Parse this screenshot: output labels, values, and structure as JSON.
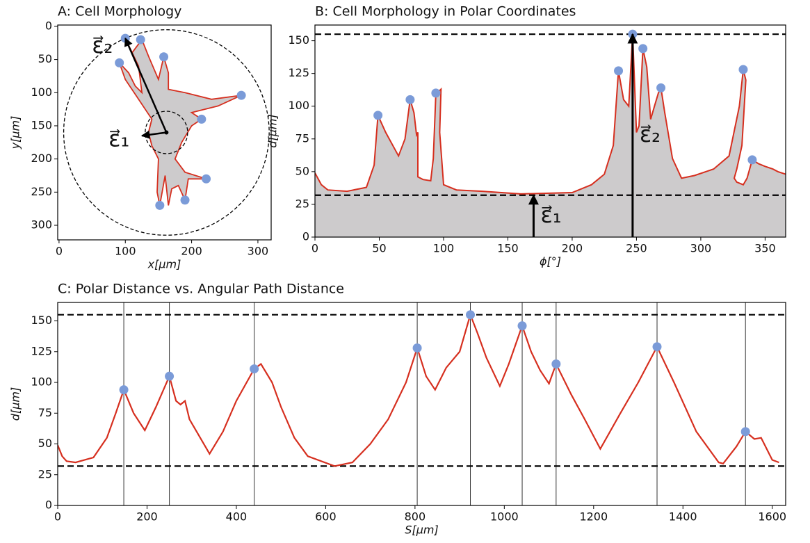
{
  "chart_data": [
    {
      "type": "outline",
      "title": "A: Cell Morphology",
      "xlabel": "x[μm]",
      "ylabel": "y[μm]",
      "xlim": [
        -2,
        320
      ],
      "ylim": [
        322,
        -2
      ],
      "xticks": [
        0,
        100,
        200,
        300
      ],
      "yticks": [
        0,
        50,
        100,
        150,
        200,
        250,
        300
      ],
      "outline": {
        "color": "#d62f1f",
        "fill": "#cdcbcc",
        "x": [
          100,
          110,
          125,
          135,
          150,
          158,
          165,
          165,
          190,
          230,
          275,
          240,
          200,
          215,
          200,
          185,
          175,
          190,
          222,
          195,
          190,
          180,
          170,
          165,
          160,
          152,
          148,
          150,
          140,
          135,
          140,
          120,
          100,
          91,
          105,
          115,
          125,
          120,
          100
        ],
        "y": [
          18,
          40,
          20,
          45,
          80,
          46,
          70,
          95,
          100,
          110,
          104,
          120,
          130,
          140,
          150,
          175,
          200,
          220,
          230,
          230,
          262,
          240,
          245,
          270,
          225,
          270,
          250,
          200,
          180,
          160,
          140,
          110,
          80,
          55,
          70,
          90,
          100,
          60,
          18
        ]
      },
      "peaks": {
        "color": "#7b9bd8",
        "x": [
          100,
          123,
          158,
          91,
          275,
          215,
          222,
          190,
          152
        ],
        "y": [
          18,
          20,
          46,
          55,
          104,
          140,
          230,
          262,
          270
        ]
      },
      "center": [
        162,
        160
      ],
      "circle_radii": [
        32,
        155
      ],
      "vectors": [
        {
          "label": "ε⃗₁",
          "x": [
            162,
            125
          ],
          "y": [
            160,
            165
          ]
        },
        {
          "label": "ε⃗₂",
          "x": [
            162,
            100
          ],
          "y": [
            160,
            18
          ]
        }
      ]
    },
    {
      "type": "area",
      "title": "B: Cell Morphology in Polar Coordinates",
      "xlabel": "ϕ[°]",
      "ylabel": "d[μm]",
      "xlim": [
        0,
        366
      ],
      "ylim": [
        0,
        162
      ],
      "xticks": [
        0,
        50,
        100,
        150,
        200,
        250,
        300,
        350
      ],
      "yticks": [
        0,
        25,
        50,
        75,
        100,
        125,
        150
      ],
      "series": [
        {
          "color": "#d62f1f",
          "fill": "#cdcbcc",
          "x": [
            0,
            5,
            10,
            25,
            40,
            46,
            49,
            55,
            65,
            70,
            74,
            77,
            79,
            80,
            80,
            84,
            90,
            92,
            94,
            97,
            98,
            97,
            100,
            110,
            130,
            160,
            200,
            215,
            225,
            232,
            236,
            240,
            244,
            247,
            250,
            252,
            255,
            258,
            261,
            264,
            267,
            269,
            272,
            278,
            285,
            295,
            310,
            322,
            330,
            333,
            335,
            332,
            328,
            326,
            328,
            333,
            336,
            338,
            340,
            345,
            350,
            356,
            360,
            366
          ],
          "values": [
            49,
            40,
            36,
            35,
            38,
            55,
            93,
            80,
            62,
            75,
            105,
            95,
            78,
            80,
            46,
            44,
            43,
            60,
            110,
            112,
            113,
            80,
            40,
            36,
            35,
            33,
            34,
            40,
            48,
            70,
            127,
            105,
            100,
            155,
            80,
            85,
            144,
            130,
            90,
            100,
            110,
            114,
            95,
            60,
            45,
            47,
            52,
            62,
            100,
            128,
            120,
            70,
            52,
            45,
            42,
            40,
            45,
            52,
            59,
            56,
            54,
            52,
            50,
            48
          ]
        }
      ],
      "peaks": {
        "color": "#7b9bd8",
        "x": [
          49,
          74,
          94,
          236,
          247,
          255,
          269,
          333,
          340
        ],
        "values": [
          93,
          105,
          110,
          127,
          155,
          144,
          114,
          128,
          59
        ]
      },
      "hlines": [
        155,
        32
      ],
      "arrows": [
        {
          "label": "ε⃗₁",
          "x": 170,
          "y": 32
        },
        {
          "label": "ε⃗₂",
          "x": 247,
          "y": 155
        }
      ]
    },
    {
      "type": "line",
      "title": "C: Polar Distance vs. Angular Path Distance",
      "xlabel": "S[μm]",
      "ylabel": "d[μm]",
      "xlim": [
        0,
        1630
      ],
      "ylim": [
        0,
        165
      ],
      "xticks": [
        0,
        200,
        400,
        600,
        800,
        1000,
        1200,
        1400,
        1600
      ],
      "yticks": [
        0,
        25,
        50,
        75,
        100,
        125,
        150
      ],
      "series": [
        {
          "color": "#d62f1f",
          "x": [
            0,
            10,
            20,
            40,
            80,
            110,
            130,
            148,
            170,
            195,
            220,
            250,
            265,
            275,
            285,
            295,
            340,
            370,
            400,
            440,
            455,
            480,
            500,
            530,
            560,
            620,
            660,
            700,
            740,
            780,
            805,
            825,
            845,
            870,
            900,
            924,
            940,
            960,
            990,
            1010,
            1040,
            1060,
            1080,
            1100,
            1116,
            1150,
            1180,
            1215,
            1260,
            1300,
            1342,
            1380,
            1430,
            1480,
            1490,
            1520,
            1540,
            1560,
            1575,
            1600,
            1615
          ],
          "values": [
            49,
            40,
            36,
            35,
            39,
            55,
            75,
            94,
            75,
            61,
            80,
            105,
            85,
            82,
            85,
            70,
            42,
            60,
            85,
            111,
            115,
            100,
            80,
            55,
            40,
            32,
            35,
            50,
            70,
            100,
            128,
            105,
            94,
            112,
            125,
            155,
            140,
            120,
            97,
            115,
            146,
            125,
            110,
            99,
            115,
            90,
            70,
            46,
            75,
            100,
            129,
            100,
            60,
            35,
            34,
            48,
            60,
            54,
            55,
            37,
            35
          ]
        }
      ],
      "peaks": {
        "color": "#7b9bd8",
        "x": [
          148,
          250,
          440,
          805,
          924,
          1040,
          1116,
          1342,
          1540
        ],
        "values": [
          94,
          105,
          111,
          128,
          155,
          146,
          115,
          129,
          60
        ]
      },
      "hlines": [
        155,
        32
      ],
      "vlines": [
        148,
        250,
        440,
        805,
        924,
        1040,
        1116,
        1342,
        1540
      ]
    }
  ]
}
